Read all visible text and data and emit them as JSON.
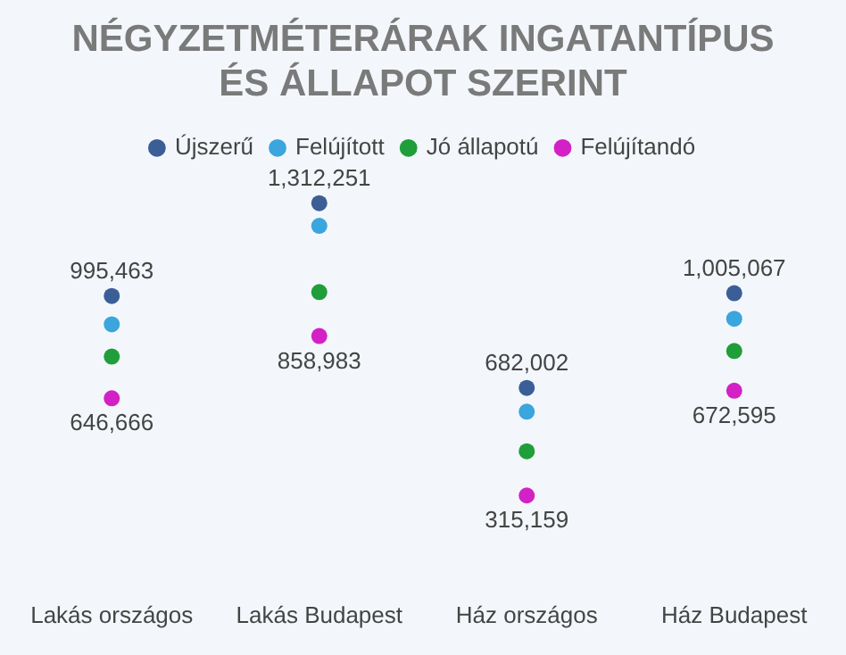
{
  "chart_data": {
    "type": "scatter",
    "title": "NÉGYZETMÉTERÁRAK INGATANTÍPUS ÉS ÁLLAPOT SZERINT",
    "categories": [
      "Lakás országos",
      "Lakás Budapest",
      "Ház országos",
      "Ház Budapest"
    ],
    "series": [
      {
        "name": "Újszerű",
        "color": "#3b5e96",
        "values": [
          995463,
          1312251,
          682002,
          1005067
        ],
        "value_labels": [
          "995,463",
          "1,312,251",
          "682,002",
          "1,005,067"
        ]
      },
      {
        "name": "Felújított",
        "color": "#3aa6dd",
        "values": [
          899000,
          1235000,
          601000,
          918000
        ]
      },
      {
        "name": "Jó állapotú",
        "color": "#1f9e3a",
        "values": [
          789000,
          1009000,
          466000,
          808000
        ]
      },
      {
        "name": "Felújítandó",
        "color": "#d321c6",
        "values": [
          646666,
          858983,
          315159,
          672595
        ],
        "value_labels": [
          "646,666",
          "858,983",
          "315,159",
          "672,595"
        ]
      }
    ],
    "tick_labels": "x",
    "grid": false,
    "legend": "top",
    "marker": "circle"
  }
}
